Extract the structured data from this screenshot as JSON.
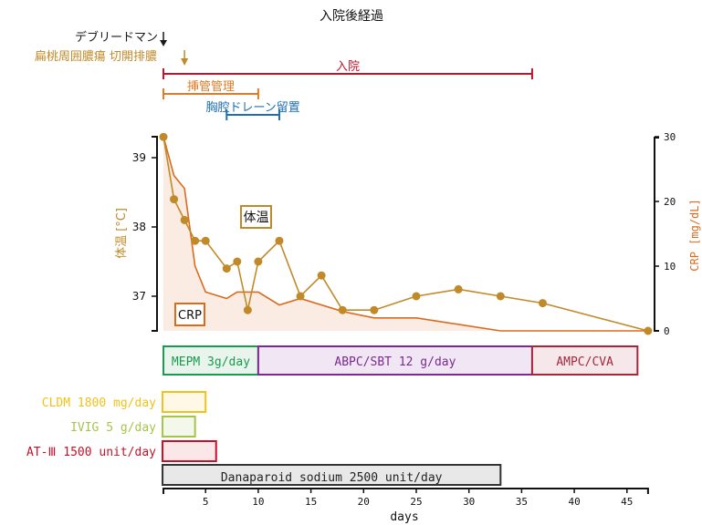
{
  "title": "入院後経過",
  "colors": {
    "temp": "#c08a28",
    "crp": "#d96b1e",
    "crp_fill": "#faece3",
    "admission": "#c0132b",
    "intubation": "#df7a26",
    "drain": "#1f6fb0",
    "debridement": "#1a1a1a",
    "tonsil": "#c08a28",
    "axis": "#111111"
  },
  "events": {
    "debridement": {
      "label": "デブリードマン",
      "day": 1
    },
    "tonsil": {
      "label": "扁桃周囲膿瘍 切開排膿",
      "day": 3
    }
  },
  "periods": [
    {
      "key": "admission",
      "label": "入院",
      "start": 1,
      "end": 36
    },
    {
      "key": "intubation",
      "label": "挿管管理",
      "start": 1,
      "end": 10
    },
    {
      "key": "drain",
      "label": "胸腔ドレーン留置",
      "start": 7,
      "end": 12
    }
  ],
  "antibiotics": [
    {
      "label": "MEPM 3g/day",
      "start": 1,
      "end": 10,
      "stroke": "#1a9a4f",
      "fill": "#e8f4ec",
      "text": "#1a9a4f"
    },
    {
      "label": "ABPC/SBT 12 g/day",
      "start": 10,
      "end": 36,
      "stroke": "#7b2a90",
      "fill": "#f1e6f3",
      "text": "#7b2a90"
    },
    {
      "label": "AMPC/CVA",
      "start": 36,
      "end": 46,
      "stroke": "#a3283e",
      "fill": "#f6e8ea",
      "text": "#a3283e"
    }
  ],
  "treatments": [
    {
      "label": "CLDM 1800 mg/day",
      "start": 1,
      "end": 5,
      "stroke": "#efc21a",
      "fill": "#fff8e6",
      "text": "#efc21a"
    },
    {
      "label": "IVIG 5 g/day",
      "start": 1,
      "end": 4,
      "stroke": "#a6c44c",
      "fill": "#f4f8ea",
      "text": "#a6c44c"
    },
    {
      "label": "AT-Ⅲ 1500 unit/day",
      "start": 1,
      "end": 6,
      "stroke": "#c0132b",
      "fill": "#fbe6e8",
      "text": "#c0132b"
    },
    {
      "label": "Danaparoid sodium 2500 unit/day",
      "start": 1,
      "end": 33,
      "stroke": "#333333",
      "fill": "#e8e8e8",
      "text": "#222222",
      "inside": true
    }
  ],
  "chart_data": {
    "type": "line",
    "title": "入院後経過",
    "xlabel": "days",
    "xlim": [
      1,
      47
    ],
    "xticks": [
      5,
      10,
      15,
      20,
      25,
      30,
      35,
      40,
      45
    ],
    "y_left": {
      "label": "体温 [°C]",
      "ticks": [
        37,
        38,
        39
      ],
      "lim": [
        36.5,
        39.3
      ]
    },
    "y_right": {
      "label": "CRP [mg/dL]",
      "ticks": [
        0,
        10,
        20,
        30
      ],
      "lim": [
        0,
        30
      ]
    },
    "series": [
      {
        "name": "体温",
        "axis": "left",
        "markers": true,
        "x": [
          1,
          2,
          3,
          4,
          5,
          7,
          8,
          9,
          10,
          12,
          14,
          16,
          18,
          21,
          25,
          29,
          33,
          37,
          47
        ],
        "values": [
          39.3,
          38.4,
          38.1,
          37.8,
          37.8,
          37.4,
          37.5,
          36.8,
          37.5,
          37.8,
          37.0,
          37.3,
          36.8,
          36.8,
          37.0,
          37.1,
          37.0,
          36.9,
          36.5
        ]
      },
      {
        "name": "CRP",
        "axis": "right",
        "markers": false,
        "filled": true,
        "x": [
          1,
          2,
          3,
          4,
          5,
          7,
          8,
          10,
          12,
          14,
          18,
          21,
          25,
          33,
          47
        ],
        "values": [
          30,
          24,
          22,
          10,
          6,
          5,
          6,
          6,
          4,
          5,
          3,
          2,
          2,
          0,
          0
        ]
      }
    ],
    "annotations": [
      {
        "text": "体温",
        "x": 9.3,
        "y_left": 38.15,
        "boxed": true
      },
      {
        "text": "CRP",
        "x": 3.5,
        "y_left": 36.75,
        "boxed": true
      }
    ]
  }
}
